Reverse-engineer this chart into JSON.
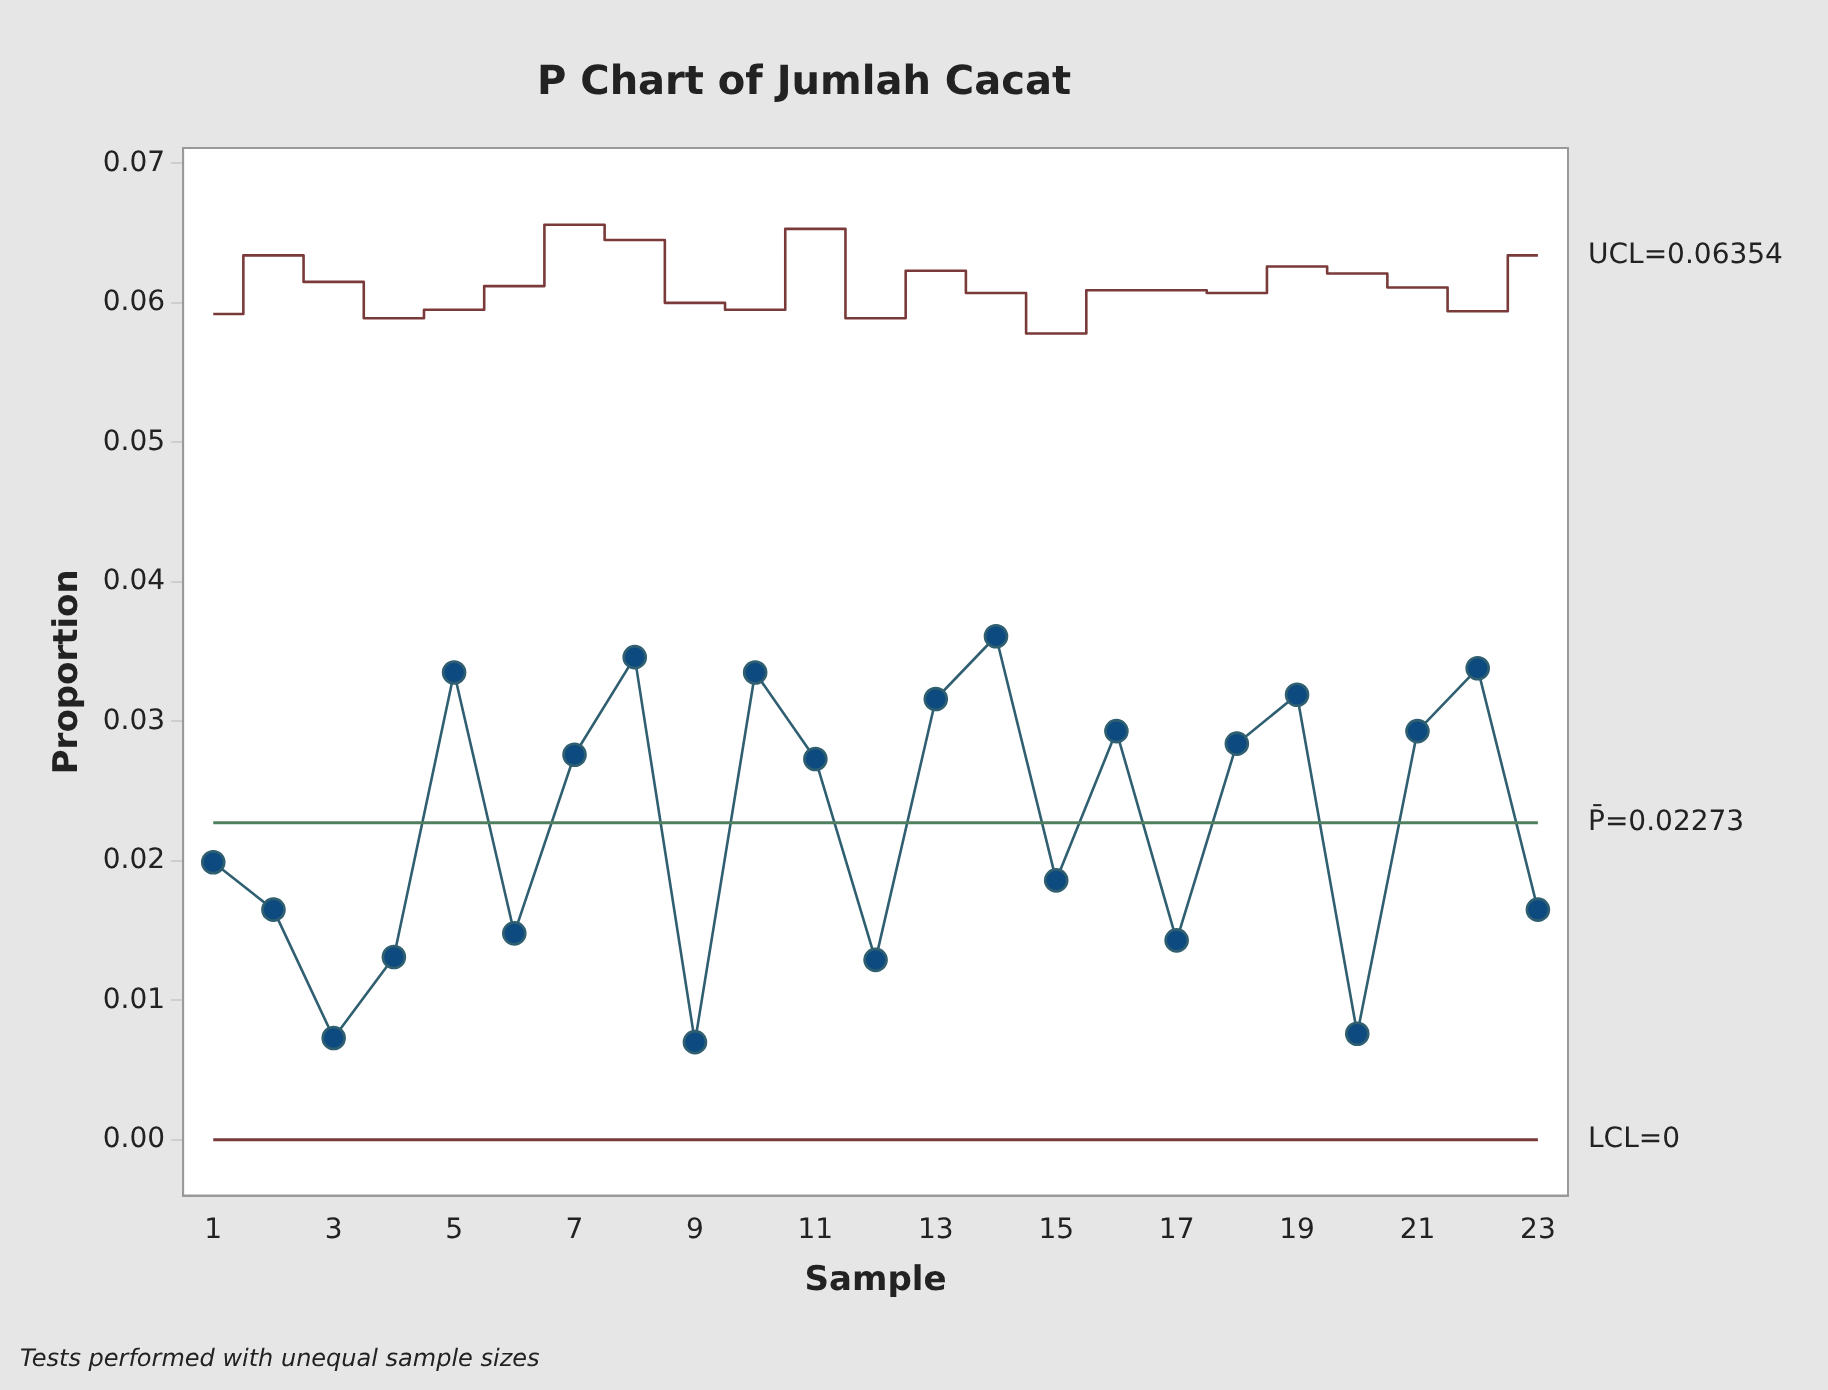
{
  "chart_data": {
    "type": "line",
    "title": "P Chart of Jumlah Cacat",
    "xlabel": "Sample",
    "ylabel": "Proportion",
    "x": [
      1,
      2,
      3,
      4,
      5,
      6,
      7,
      8,
      9,
      10,
      11,
      12,
      13,
      14,
      15,
      16,
      17,
      18,
      19,
      20,
      21,
      22,
      23
    ],
    "series": [
      {
        "color": "#0d4a80",
        "marker": "circle",
        "values": [
          0.0199,
          0.0165,
          0.0073,
          0.0131,
          0.0335,
          0.0148,
          0.0276,
          0.0346,
          0.007,
          0.0335,
          0.0273,
          0.0129,
          0.0316,
          0.0361,
          0.0186,
          0.0293,
          0.0143,
          0.0284,
          0.0319,
          0.0076,
          0.0293,
          0.0338,
          0.0165
        ]
      },
      {
        "type": "step",
        "name": "UCL=0.06354",
        "color": "#7a3a3a",
        "marker": "none",
        "values": [
          0.0592,
          0.0634,
          0.0615,
          0.0589,
          0.0595,
          0.0612,
          0.0656,
          0.0645,
          0.06,
          0.0595,
          0.0653,
          0.0589,
          0.0623,
          0.0607,
          0.0578,
          0.0609,
          0.0609,
          0.0607,
          0.0626,
          0.0621,
          0.0611,
          0.0594,
          0.0634
        ]
      }
    ],
    "ref_lines": [
      {
        "axis": "y",
        "value": 0.02273,
        "label": "P̄=0.02273",
        "color": "#4f7f5f"
      },
      {
        "axis": "y",
        "value": 0,
        "label": "LCL=0",
        "color": "#7a3a3a"
      }
    ],
    "xlim": [
      0.5,
      23.5
    ],
    "xticks": [
      1,
      3,
      5,
      7,
      9,
      11,
      13,
      15,
      17,
      19,
      21,
      23
    ],
    "ylim": [
      -0.004,
      0.0711
    ],
    "yticks": [
      {
        "value": 0,
        "label": "0.00"
      },
      0.01,
      0.02,
      0.03,
      0.04,
      0.05,
      0.06,
      0.07
    ],
    "grid": false,
    "legend": false,
    "annotations": [
      "Tests performed with unequal sample sizes"
    ]
  }
}
